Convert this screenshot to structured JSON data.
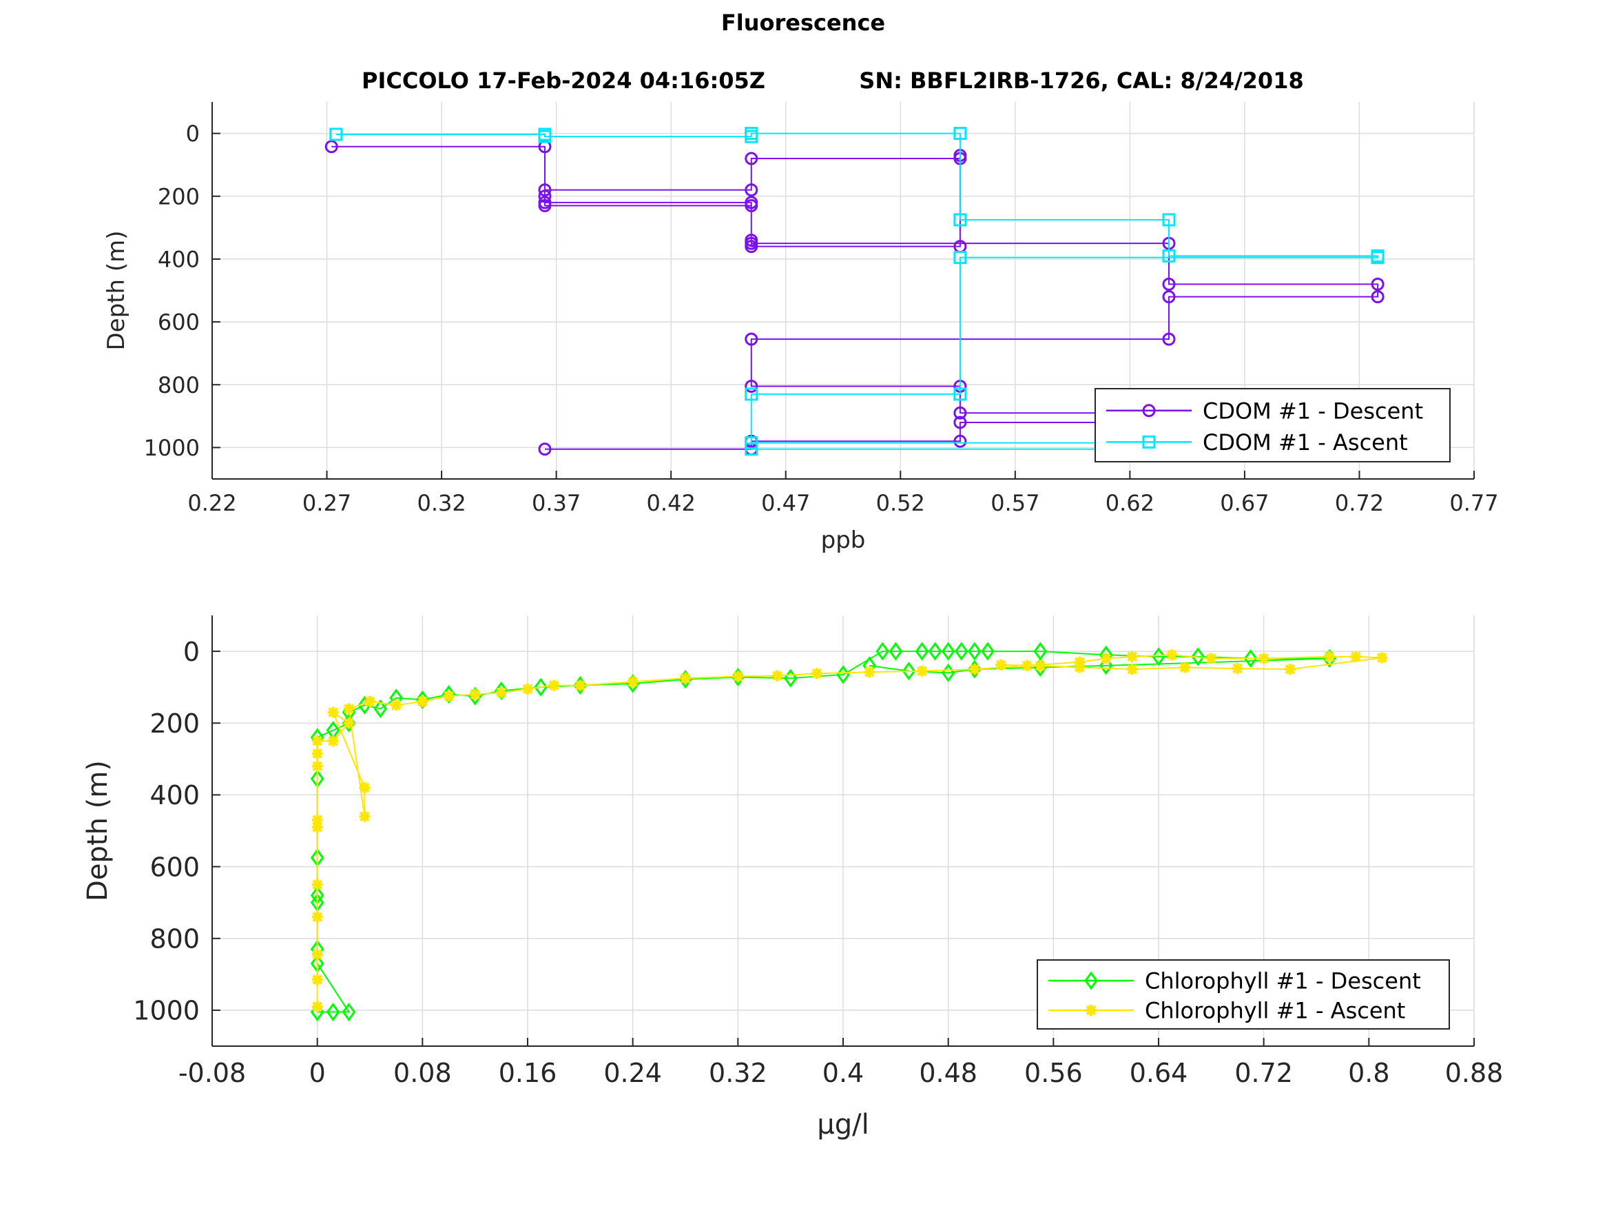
{
  "figure": {
    "title": "Fluorescence",
    "subtitle_left": "PICCOLO 17-Feb-2024 04:16:05Z",
    "subtitle_right": "SN: BBFL2IRB-1726, CAL: 8/24/2018"
  },
  "colors": {
    "cdom_descent": "#7a10f0",
    "cdom_ascent": "#00e6ff",
    "chl_descent": "#00ff00",
    "chl_ascent": "#ffe600",
    "grid": "#dcdcdc",
    "axis": "#262626"
  },
  "chart_data": [
    {
      "type": "line",
      "xlabel": "ppb",
      "ylabel": "Depth (m)",
      "xlim": [
        0.22,
        0.77
      ],
      "ylim": [
        1100,
        -100
      ],
      "y_reversed": true,
      "grid": true,
      "legend_position": "bottom-right",
      "xticks": [
        "0.22",
        "0.27",
        "0.32",
        "0.37",
        "0.42",
        "0.47",
        "0.52",
        "0.57",
        "0.62",
        "0.67",
        "0.72",
        "0.77"
      ],
      "yticks": [
        "0",
        "200",
        "400",
        "600",
        "800",
        "1000"
      ],
      "series": [
        {
          "name": "CDOM #1 - Descent",
          "marker": "circle",
          "color": "#7a10f0",
          "points": [
            [
              0.272,
              42
            ],
            [
              0.365,
              42
            ],
            [
              0.365,
              200
            ],
            [
              0.365,
              230
            ],
            [
              0.455,
              230
            ],
            [
              0.455,
              340
            ],
            [
              0.455,
              360
            ],
            [
              0.546,
              360
            ],
            [
              0.546,
              70
            ],
            [
              0.546,
              80
            ],
            [
              0.455,
              80
            ],
            [
              0.455,
              180
            ],
            [
              0.365,
              180
            ],
            [
              0.365,
              220
            ],
            [
              0.455,
              220
            ],
            [
              0.455,
              350
            ],
            [
              0.637,
              350
            ],
            [
              0.637,
              480
            ],
            [
              0.728,
              480
            ],
            [
              0.728,
              520
            ],
            [
              0.637,
              520
            ],
            [
              0.637,
              655
            ],
            [
              0.455,
              655
            ],
            [
              0.455,
              805
            ],
            [
              0.546,
              805
            ],
            [
              0.546,
              890
            ],
            [
              0.637,
              890
            ],
            [
              0.637,
              920
            ],
            [
              0.546,
              920
            ],
            [
              0.546,
              980
            ],
            [
              0.455,
              980
            ],
            [
              0.455,
              1005
            ],
            [
              0.365,
              1005
            ]
          ]
        },
        {
          "name": "CDOM #1 - Ascent",
          "marker": "square",
          "color": "#00e6ff",
          "points": [
            [
              0.274,
              3
            ],
            [
              0.365,
              3
            ],
            [
              0.365,
              10
            ],
            [
              0.455,
              10
            ],
            [
              0.455,
              0
            ],
            [
              0.546,
              0
            ],
            [
              0.546,
              275
            ],
            [
              0.637,
              275
            ],
            [
              0.637,
              390
            ],
            [
              0.728,
              390
            ],
            [
              0.728,
              395
            ],
            [
              0.546,
              395
            ],
            [
              0.546,
              830
            ],
            [
              0.455,
              830
            ],
            [
              0.455,
              985
            ],
            [
              0.637,
              985
            ],
            [
              0.637,
              1005
            ],
            [
              0.455,
              1005
            ]
          ]
        }
      ]
    },
    {
      "type": "line",
      "xlabel": "μg/l",
      "ylabel": "Depth (m)",
      "xlim": [
        -0.08,
        0.88
      ],
      "ylim": [
        1100,
        -100
      ],
      "y_reversed": true,
      "grid": true,
      "legend_position": "bottom-right",
      "xticks": [
        "-0.08",
        "0",
        "0.08",
        "0.16",
        "0.24",
        "0.32",
        "0.4",
        "0.48",
        "0.56",
        "0.64",
        "0.72",
        "0.8",
        "0.88"
      ],
      "yticks": [
        "0",
        "200",
        "400",
        "600",
        "800",
        "1000"
      ],
      "series": [
        {
          "name": "Chlorophyll #1 - Descent",
          "marker": "diamond",
          "color": "#00ff00",
          "points": [
            [
              0.0,
              1005
            ],
            [
              0.012,
              1005
            ],
            [
              0.024,
              1005
            ],
            [
              0.0,
              870
            ],
            [
              0.0,
              830
            ],
            [
              0.0,
              700
            ],
            [
              0.0,
              680
            ],
            [
              0.0,
              575
            ],
            [
              0.0,
              355
            ],
            [
              0.0,
              240
            ],
            [
              0.012,
              220
            ],
            [
              0.024,
              200
            ],
            [
              0.024,
              170
            ],
            [
              0.036,
              150
            ],
            [
              0.048,
              160
            ],
            [
              0.06,
              130
            ],
            [
              0.08,
              135
            ],
            [
              0.1,
              120
            ],
            [
              0.12,
              125
            ],
            [
              0.14,
              110
            ],
            [
              0.17,
              100
            ],
            [
              0.2,
              95
            ],
            [
              0.24,
              90
            ],
            [
              0.28,
              78
            ],
            [
              0.32,
              72
            ],
            [
              0.36,
              75
            ],
            [
              0.4,
              65
            ],
            [
              0.43,
              0
            ],
            [
              0.44,
              0
            ],
            [
              0.46,
              0
            ],
            [
              0.47,
              0
            ],
            [
              0.48,
              0
            ],
            [
              0.49,
              0
            ],
            [
              0.5,
              0
            ],
            [
              0.51,
              0
            ],
            [
              0.55,
              0
            ],
            [
              0.6,
              10
            ],
            [
              0.64,
              15
            ],
            [
              0.67,
              15
            ],
            [
              0.71,
              20
            ],
            [
              0.77,
              20
            ],
            [
              0.6,
              40
            ],
            [
              0.55,
              45
            ],
            [
              0.5,
              50
            ],
            [
              0.48,
              60
            ],
            [
              0.45,
              55
            ],
            [
              0.42,
              40
            ]
          ]
        },
        {
          "name": "Chlorophyll #1 - Ascent",
          "marker": "asterisk",
          "color": "#ffe600",
          "points": [
            [
              0.0,
              990
            ],
            [
              0.0,
              915
            ],
            [
              0.0,
              845
            ],
            [
              0.0,
              740
            ],
            [
              0.0,
              650
            ],
            [
              0.0,
              490
            ],
            [
              0.0,
              470
            ],
            [
              0.0,
              320
            ],
            [
              0.0,
              285
            ],
            [
              0.0,
              250
            ],
            [
              0.012,
              250
            ],
            [
              0.024,
              200
            ],
            [
              0.012,
              170
            ],
            [
              0.036,
              380
            ],
            [
              0.036,
              460
            ],
            [
              0.024,
              160
            ],
            [
              0.04,
              140
            ],
            [
              0.06,
              150
            ],
            [
              0.08,
              140
            ],
            [
              0.1,
              125
            ],
            [
              0.12,
              120
            ],
            [
              0.14,
              115
            ],
            [
              0.16,
              105
            ],
            [
              0.18,
              95
            ],
            [
              0.2,
              95
            ],
            [
              0.24,
              85
            ],
            [
              0.28,
              75
            ],
            [
              0.32,
              70
            ],
            [
              0.35,
              68
            ],
            [
              0.38,
              62
            ],
            [
              0.42,
              58
            ],
            [
              0.46,
              55
            ],
            [
              0.5,
              50
            ],
            [
              0.54,
              40
            ],
            [
              0.58,
              30
            ],
            [
              0.6,
              20
            ],
            [
              0.62,
              15
            ],
            [
              0.65,
              10
            ],
            [
              0.68,
              20
            ],
            [
              0.72,
              20
            ],
            [
              0.77,
              15
            ],
            [
              0.79,
              15
            ],
            [
              0.81,
              18
            ],
            [
              0.74,
              50
            ],
            [
              0.7,
              48
            ],
            [
              0.66,
              45
            ],
            [
              0.62,
              50
            ],
            [
              0.58,
              45
            ],
            [
              0.55,
              40
            ],
            [
              0.52,
              38
            ]
          ]
        }
      ]
    }
  ]
}
